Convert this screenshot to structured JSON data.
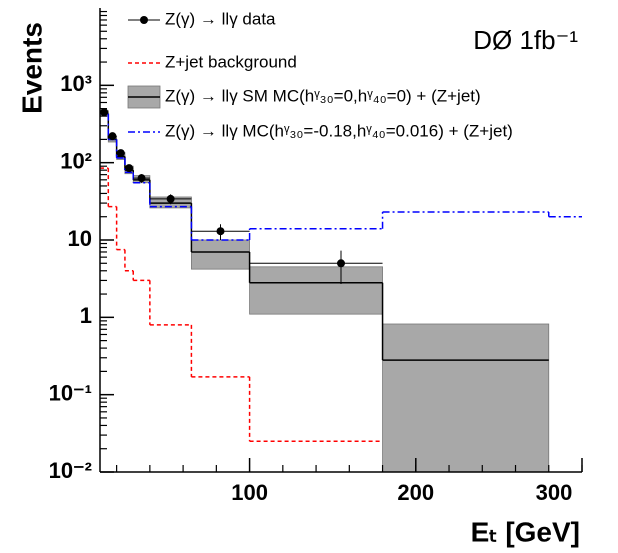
{
  "chart_data": {
    "type": "histogram",
    "annotation": "DØ 1fb⁻¹",
    "xlabel": "Eₜ [GeV]",
    "ylabel": "Events",
    "bins": [
      10,
      15,
      20,
      25,
      30,
      40,
      65,
      100,
      180,
      280,
      300
    ],
    "xlim": [
      10,
      300
    ],
    "xticks": [
      100,
      200,
      300
    ],
    "ylim": [
      0.01,
      10000
    ],
    "yscale": "log",
    "yticks": [
      {
        "value": 0.01,
        "label": "10⁻²"
      },
      {
        "value": 0.1,
        "label": "10⁻¹"
      },
      1,
      10,
      {
        "value": 100,
        "label": "10²"
      },
      {
        "value": 1000,
        "label": "10³"
      }
    ],
    "series": [
      {
        "name": "Z(γ) → llγ data",
        "color": "#000000",
        "style": "points",
        "x": [
          12.5,
          17.5,
          22.5,
          27.5,
          35,
          52.5,
          82.5,
          155
        ],
        "values": [
          450,
          220,
          133,
          85,
          63,
          34,
          13,
          5
        ],
        "errors": [
          20,
          15,
          12,
          9,
          8,
          5,
          3,
          2.3
        ]
      },
      {
        "name": "Z+jet background",
        "color": "#ff0000",
        "style": "dashed",
        "values": [
          85,
          27,
          7.5,
          4,
          3,
          0.8,
          0.17,
          0.025,
          null,
          null
        ]
      },
      {
        "name": "Z(γ) → llγ SM MC(hᵞ₃₀=0,hᵞ₄₀=0) + (Z+jet)",
        "color": "#a8a8a8",
        "style": "band",
        "values": [
          430,
          200,
          120,
          80,
          60,
          30,
          7,
          2.8,
          0.28,
          null
        ],
        "low": [
          400,
          185,
          110,
          72,
          55,
          26,
          4.2,
          1.1,
          0.01,
          null
        ],
        "high": [
          470,
          220,
          135,
          90,
          68,
          36,
          10,
          4.5,
          0.82,
          null
        ]
      },
      {
        "name": "Z(γ) → llγ MC(hᵞ₃₀=-0.18,hᵞ₄₀=0.016) + (Z+jet)",
        "color": "#0000ff",
        "style": "dashdot",
        "values": [
          430,
          200,
          115,
          75,
          55,
          27,
          10,
          14,
          23,
          20
        ]
      }
    ]
  }
}
